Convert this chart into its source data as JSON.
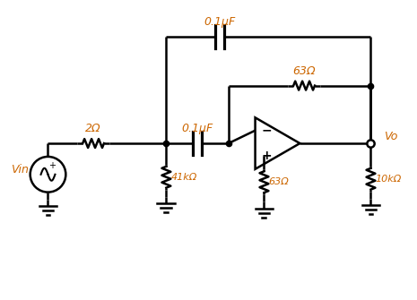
{
  "bg_color": "#ffffff",
  "line_color": "#000000",
  "label_color": "#cc6600",
  "figsize": [
    4.65,
    3.35
  ],
  "dpi": 100,
  "labels": {
    "C_top": "0.1μF",
    "R63_fb": "63Ω",
    "R2": "2Ω",
    "C_ser": "0.1μF",
    "R41k": "41kΩ",
    "R63_plus": "63Ω",
    "R10k": "10kΩ",
    "Vin": "Vin",
    "Vo": "Vo"
  }
}
